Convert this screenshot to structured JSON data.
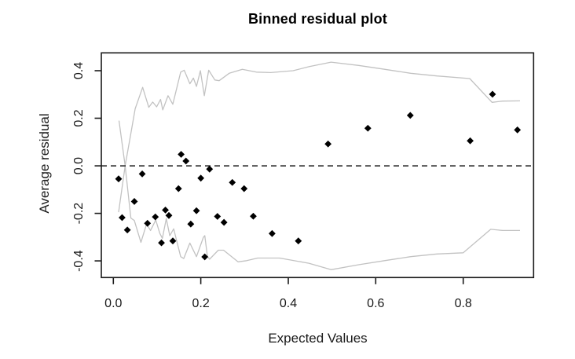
{
  "figure": {
    "kind": "R binned residual diagnostic plot"
  },
  "chart_data": {
    "type": "scatter",
    "title": "Binned residual plot",
    "xlabel": "Expected Values",
    "ylabel": "Average residual",
    "xlim": [
      -0.0275,
      0.961
    ],
    "ylim": [
      -0.47,
      0.475
    ],
    "x_ticks": [
      0,
      0.2,
      0.4,
      0.6,
      0.8
    ],
    "x_tick_labels": [
      "0.0",
      "0.2",
      "0.4",
      "0.6",
      "0.8"
    ],
    "y_ticks": [
      -0.4,
      -0.2,
      0,
      0.2,
      0.4
    ],
    "y_tick_labels": [
      "-0.4",
      "-0.2",
      "0.0",
      "0.2",
      "0.4"
    ],
    "grid": false,
    "legend": null,
    "frame_color": "#1a1a1a",
    "zero_line": {
      "y": 0,
      "style": "dashed",
      "color": "#1a1a1a"
    },
    "points": {
      "name": "binned-average-residuals",
      "marker": "diamond",
      "color": "#000000",
      "xy": [
        [
          0.012,
          -0.055
        ],
        [
          0.02,
          -0.218
        ],
        [
          0.032,
          -0.27
        ],
        [
          0.048,
          -0.15
        ],
        [
          0.066,
          -0.034
        ],
        [
          0.078,
          -0.242
        ],
        [
          0.096,
          -0.215
        ],
        [
          0.11,
          -0.324
        ],
        [
          0.119,
          -0.186
        ],
        [
          0.127,
          -0.209
        ],
        [
          0.136,
          -0.316
        ],
        [
          0.149,
          -0.096
        ],
        [
          0.155,
          0.048
        ],
        [
          0.166,
          0.02
        ],
        [
          0.177,
          -0.245
        ],
        [
          0.19,
          -0.189
        ],
        [
          0.2,
          -0.052
        ],
        [
          0.209,
          -0.383
        ],
        [
          0.22,
          -0.014
        ],
        [
          0.238,
          -0.213
        ],
        [
          0.253,
          -0.238
        ],
        [
          0.272,
          -0.07
        ],
        [
          0.299,
          -0.096
        ],
        [
          0.32,
          -0.212
        ],
        [
          0.363,
          -0.285
        ],
        [
          0.423,
          -0.316
        ],
        [
          0.491,
          0.092
        ],
        [
          0.582,
          0.158
        ],
        [
          0.679,
          0.212
        ],
        [
          0.816,
          0.105
        ],
        [
          0.867,
          0.301
        ],
        [
          0.924,
          0.151
        ]
      ]
    },
    "bands": {
      "name": "plus-minus-2se-bounds",
      "color": "#c2c2c2",
      "upper": [
        [
          0.012,
          -0.195
        ],
        [
          0.027,
          0.0
        ],
        [
          0.04,
          0.136
        ],
        [
          0.05,
          0.24
        ],
        [
          0.067,
          0.33
        ],
        [
          0.081,
          0.246
        ],
        [
          0.09,
          0.268
        ],
        [
          0.099,
          0.248
        ],
        [
          0.108,
          0.279
        ],
        [
          0.113,
          0.235
        ],
        [
          0.125,
          0.295
        ],
        [
          0.136,
          0.259
        ],
        [
          0.154,
          0.394
        ],
        [
          0.162,
          0.402
        ],
        [
          0.175,
          0.345
        ],
        [
          0.183,
          0.369
        ],
        [
          0.19,
          0.334
        ],
        [
          0.199,
          0.4
        ],
        [
          0.208,
          0.295
        ],
        [
          0.218,
          0.402
        ],
        [
          0.232,
          0.361
        ],
        [
          0.242,
          0.358
        ],
        [
          0.265,
          0.389
        ],
        [
          0.295,
          0.406
        ],
        [
          0.327,
          0.394
        ],
        [
          0.36,
          0.392
        ],
        [
          0.411,
          0.4
        ],
        [
          0.447,
          0.417
        ],
        [
          0.498,
          0.436
        ],
        [
          0.561,
          0.422
        ],
        [
          0.62,
          0.406
        ],
        [
          0.68,
          0.389
        ],
        [
          0.74,
          0.378
        ],
        [
          0.815,
          0.367
        ],
        [
          0.866,
          0.267
        ],
        [
          0.89,
          0.272
        ],
        [
          0.93,
          0.273
        ]
      ],
      "lower": [
        [
          0.013,
          0.19
        ],
        [
          0.027,
          0.0
        ],
        [
          0.04,
          -0.22
        ],
        [
          0.048,
          -0.23
        ],
        [
          0.063,
          -0.322
        ],
        [
          0.076,
          -0.245
        ],
        [
          0.085,
          -0.272
        ],
        [
          0.097,
          -0.228
        ],
        [
          0.106,
          -0.283
        ],
        [
          0.112,
          -0.305
        ],
        [
          0.121,
          -0.222
        ],
        [
          0.129,
          -0.294
        ],
        [
          0.138,
          -0.265
        ],
        [
          0.154,
          -0.382
        ],
        [
          0.161,
          -0.39
        ],
        [
          0.175,
          -0.325
        ],
        [
          0.19,
          -0.382
        ],
        [
          0.206,
          -0.3
        ],
        [
          0.209,
          -0.294
        ],
        [
          0.215,
          -0.38
        ],
        [
          0.22,
          -0.393
        ],
        [
          0.24,
          -0.355
        ],
        [
          0.252,
          -0.355
        ],
        [
          0.285,
          -0.404
        ],
        [
          0.305,
          -0.399
        ],
        [
          0.33,
          -0.388
        ],
        [
          0.38,
          -0.388
        ],
        [
          0.447,
          -0.41
        ],
        [
          0.498,
          -0.437
        ],
        [
          0.561,
          -0.416
        ],
        [
          0.62,
          -0.399
        ],
        [
          0.68,
          -0.382
        ],
        [
          0.74,
          -0.371
        ],
        [
          0.8,
          -0.366
        ],
        [
          0.863,
          -0.267
        ],
        [
          0.89,
          -0.272
        ],
        [
          0.93,
          -0.272
        ]
      ]
    }
  }
}
